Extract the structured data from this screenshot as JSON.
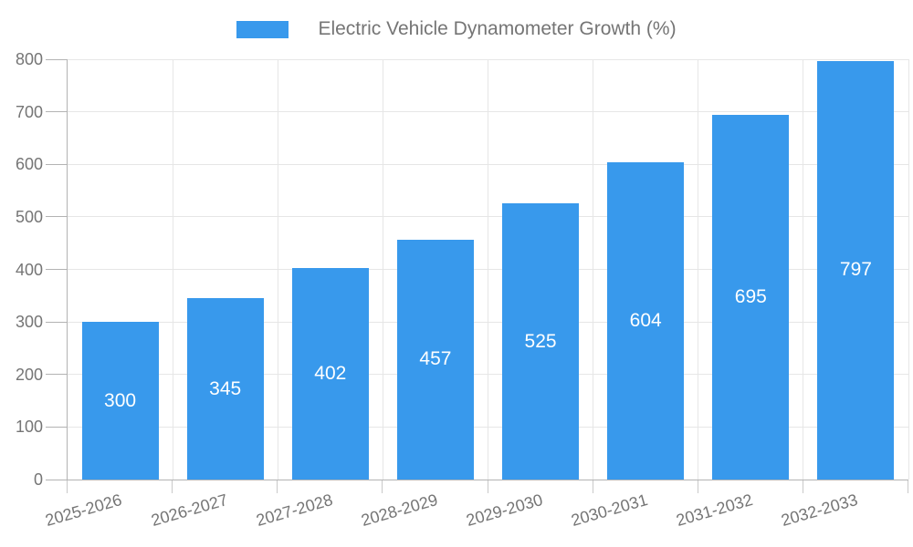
{
  "chart_data": {
    "type": "bar",
    "title": "Electric Vehicle Dynamometer Growth (%)",
    "legend": {
      "position": "top-center",
      "label": "Electric Vehicle Dynamometer Growth (%)"
    },
    "categories": [
      "2025-2026",
      "2026-2027",
      "2027-2028",
      "2028-2029",
      "2029-2030",
      "2030-2031",
      "2031-2032",
      "2032-2033"
    ],
    "values": [
      300,
      345,
      402,
      457,
      525,
      604,
      695,
      797
    ],
    "xlabel": "",
    "ylabel": "",
    "ylim": [
      0,
      800
    ],
    "yticks": [
      0,
      100,
      200,
      300,
      400,
      500,
      600,
      700,
      800
    ],
    "grid": true,
    "value_labels": "inside-center",
    "x_label_rotation_deg": -16,
    "colors": {
      "bar": "#3899EC",
      "value_label": "#FFFFFF",
      "axis_text": "#757575",
      "legend_text": "#757575",
      "gridline": "#E6E6E6",
      "axis_line": "#B3B3B3",
      "tick": "#C9C9C9",
      "background": "#FFFFFF"
    }
  }
}
